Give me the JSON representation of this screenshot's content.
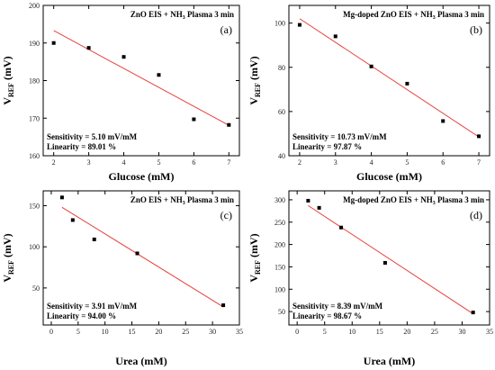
{
  "chart_data": [
    {
      "type": "scatter",
      "panel_label": "(a)",
      "title": "ZnO EIS + NH",
      "title_sub": "3",
      "title_tail": " Plasma 3 min",
      "xlabel": "Glucose (mM)",
      "ylabel_main": "V",
      "ylabel_sub": "REF",
      "ylabel_unit": " (mV)",
      "xlim": [
        1.7,
        7.3
      ],
      "ylim": [
        160,
        200
      ],
      "xticks": [
        2,
        3,
        4,
        5,
        6,
        7
      ],
      "yticks": [
        160,
        170,
        180,
        190,
        200
      ],
      "points": [
        [
          2,
          190
        ],
        [
          3,
          188.7
        ],
        [
          4,
          186.3
        ],
        [
          5,
          181.5
        ],
        [
          6,
          169.7
        ],
        [
          7,
          168.2
        ]
      ],
      "fit": [
        [
          2,
          193.3
        ],
        [
          7,
          168.1
        ]
      ],
      "sensitivity": "Sensitivity = 5.10 mV/mM",
      "linearity": "Linearity = 89.01 %"
    },
    {
      "type": "scatter",
      "panel_label": "(b)",
      "title": "Mg-doped ZnO EIS + NH",
      "title_sub": "3",
      "title_tail": " Plasma 3 min",
      "xlabel": "Glucose (mM)",
      "ylabel_main": "V",
      "ylabel_sub": "REF",
      "ylabel_unit": " (mV)",
      "xlim": [
        1.7,
        7.3
      ],
      "ylim": [
        40,
        108
      ],
      "xticks": [
        2,
        3,
        4,
        5,
        6,
        7
      ],
      "yticks": [
        40,
        60,
        80,
        100
      ],
      "points": [
        [
          2,
          99.2
        ],
        [
          3,
          94
        ],
        [
          4,
          80.4
        ],
        [
          5,
          72.6
        ],
        [
          6,
          55.7
        ],
        [
          7,
          48.8
        ]
      ],
      "fit": [
        [
          2,
          102
        ],
        [
          7,
          48.5
        ]
      ],
      "sensitivity": "Sensitivity = 10.73 mV/mM",
      "linearity": "Linearity = 97.87 %"
    },
    {
      "type": "scatter",
      "panel_label": "(c)",
      "title": "ZnO EIS + NH",
      "title_sub": "3",
      "title_tail": " Plasma 3 min",
      "xlabel": "Urea (mM)",
      "ylabel_main": "V",
      "ylabel_sub": "REF",
      "ylabel_unit": " (mV)",
      "xlim": [
        -1.5,
        35
      ],
      "ylim": [
        5,
        168
      ],
      "xticks": [
        0,
        5,
        10,
        15,
        20,
        25,
        30,
        35
      ],
      "yticks": [
        50,
        100,
        150
      ],
      "points": [
        [
          2,
          160
        ],
        [
          4,
          132.5
        ],
        [
          8,
          109
        ],
        [
          16,
          92
        ],
        [
          32,
          29
        ]
      ],
      "fit": [
        [
          2,
          148
        ],
        [
          32,
          27
        ]
      ],
      "sensitivity": "Sensitivity = 3.91 mV/mM",
      "linearity": "Linearity = 94.00 %"
    },
    {
      "type": "scatter",
      "panel_label": "(d)",
      "title": "Mg-doped ZnO EIS + NH",
      "title_sub": "3",
      "title_tail": " Plasma 3 min",
      "xlabel": "Urea (mM)",
      "ylabel_main": "V",
      "ylabel_sub": "REF",
      "ylabel_unit": " (mV)",
      "xlim": [
        -1.5,
        35
      ],
      "ylim": [
        20,
        320
      ],
      "xticks": [
        0,
        5,
        10,
        15,
        20,
        25,
        30,
        35
      ],
      "yticks": [
        50,
        100,
        150,
        200,
        250,
        300
      ],
      "points": [
        [
          2,
          298
        ],
        [
          4,
          282
        ],
        [
          8,
          238
        ],
        [
          16,
          159
        ],
        [
          32,
          48
        ]
      ],
      "fit": [
        [
          2,
          287
        ],
        [
          32,
          45
        ]
      ],
      "sensitivity": "Sensitivity = 8.39 mV/mM",
      "linearity": "Linearity = 98.67 %"
    }
  ],
  "colors": {
    "fit_line": "#e8413c",
    "marker": "#000000",
    "axis": "#000000"
  }
}
